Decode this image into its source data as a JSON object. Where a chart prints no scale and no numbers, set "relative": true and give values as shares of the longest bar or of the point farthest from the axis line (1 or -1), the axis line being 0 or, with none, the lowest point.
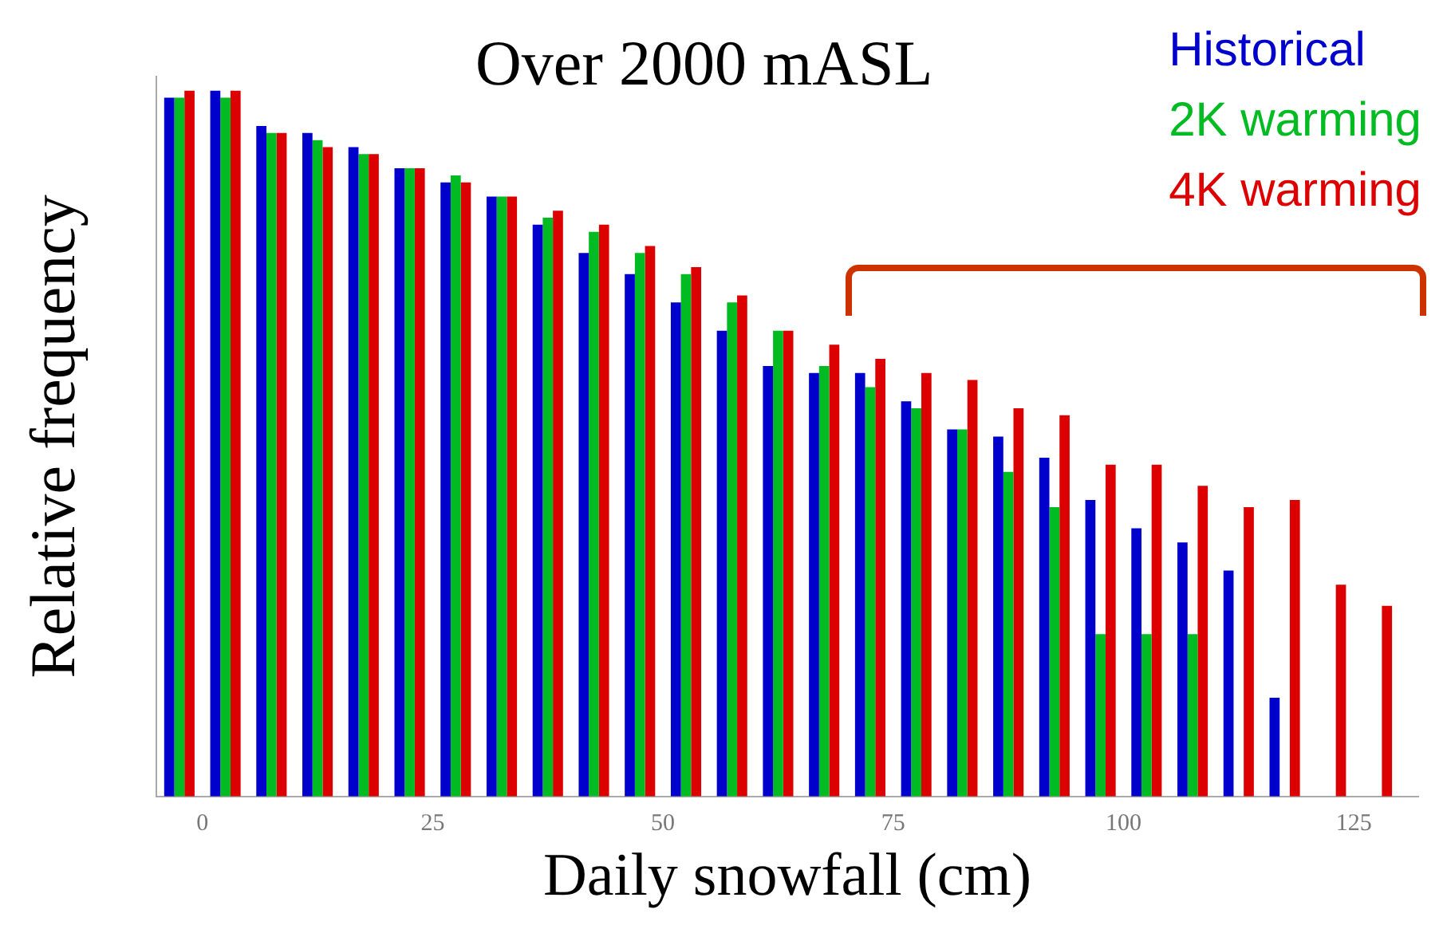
{
  "chart_data": {
    "type": "bar",
    "title": "Over 2000 mASL",
    "xlabel": "Daily snowfall (cm)",
    "ylabel": "Relative frequency",
    "relative": true,
    "legend": "top right",
    "grid": false,
    "x": [
      -2.5,
      2.5,
      7.5,
      12.5,
      17.5,
      22.5,
      27.5,
      32.5,
      37.5,
      42.5,
      47.5,
      52.5,
      57.5,
      62.5,
      67.5,
      72.5,
      77.5,
      82.5,
      87.5,
      92.5,
      97.5,
      102.5,
      107.5,
      112.5,
      117.5,
      122.5,
      127.5
    ],
    "xlim": [
      -5,
      132
    ],
    "xticks": [
      0,
      25,
      50,
      75,
      100,
      125
    ],
    "series": [
      {
        "name": "Historical",
        "color": "#0000cc",
        "values": [
          0.99,
          1.0,
          0.95,
          0.94,
          0.92,
          0.89,
          0.87,
          0.85,
          0.81,
          0.77,
          0.74,
          0.7,
          0.66,
          0.61,
          0.6,
          0.6,
          0.56,
          0.52,
          0.51,
          0.48,
          0.42,
          0.38,
          0.36,
          0.32,
          0.14,
          null,
          null
        ]
      },
      {
        "name": "2K warming",
        "color": "#00bb22",
        "values": [
          0.99,
          0.99,
          0.94,
          0.93,
          0.91,
          0.89,
          0.88,
          0.85,
          0.82,
          0.8,
          0.77,
          0.74,
          0.7,
          0.66,
          0.61,
          0.58,
          0.55,
          0.52,
          0.46,
          0.41,
          0.23,
          0.23,
          0.23,
          null,
          null,
          null,
          null
        ]
      },
      {
        "name": "4K warming",
        "color": "#dd0000",
        "values": [
          1.0,
          1.0,
          0.94,
          0.92,
          0.91,
          0.89,
          0.87,
          0.85,
          0.83,
          0.81,
          0.78,
          0.75,
          0.71,
          0.66,
          0.64,
          0.62,
          0.6,
          0.59,
          0.55,
          0.54,
          0.47,
          0.47,
          0.44,
          0.41,
          0.42,
          0.3,
          0.27
        ]
      }
    ]
  }
}
